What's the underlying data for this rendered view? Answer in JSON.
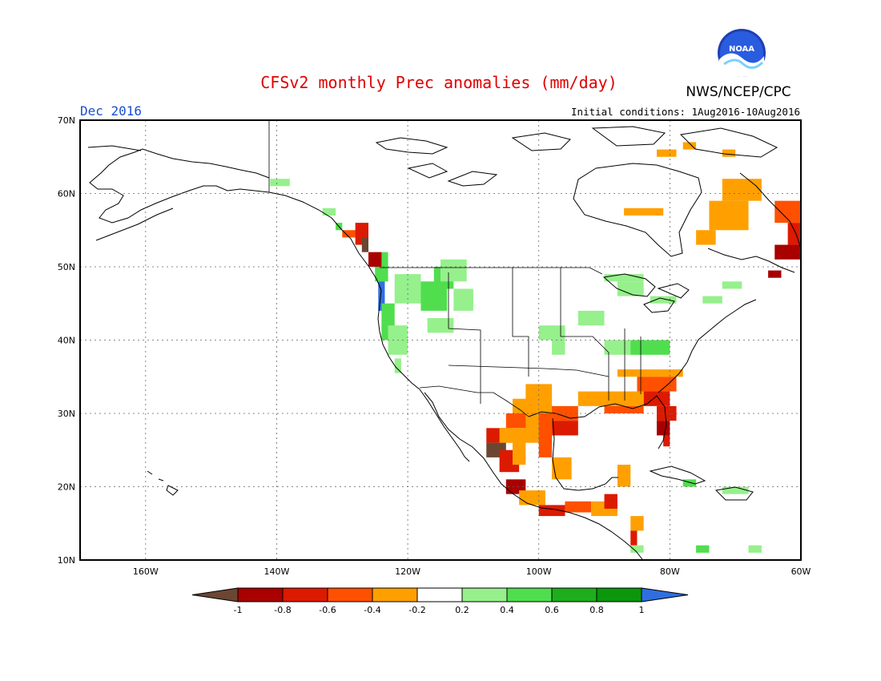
{
  "title": "CFSv2 monthly Prec anomalies (mm/day)",
  "month_label": "Dec 2016",
  "agency": "NWS/NCEP/CPC",
  "logo_text": "NOAA",
  "initial_conditions": "Initial conditions:  1Aug2016-10Aug2016",
  "axes": {
    "lat_labels": [
      "70N",
      "60N",
      "50N",
      "40N",
      "30N",
      "20N",
      "10N"
    ],
    "lon_labels": [
      "160W",
      "140W",
      "120W",
      "100W",
      "80W",
      "60W"
    ],
    "lat_range": [
      10,
      70
    ],
    "lon_range": [
      -170,
      -60
    ]
  },
  "colorbar": {
    "tick_labels": [
      "-1",
      "-0.8",
      "-0.6",
      "-0.4",
      "-0.2",
      "0.2",
      "0.4",
      "0.6",
      "0.8",
      "1"
    ],
    "colors": [
      "#6b4632",
      "#a90000",
      "#dc1a00",
      "#ff5000",
      "#ffa000",
      "#ffffff",
      "#96f08c",
      "#50de4e",
      "#1ead1c",
      "#0b960b",
      "#2e6fe0"
    ]
  },
  "anomaly_colors": {
    "strong_dry": "#6b4632",
    "dry_08": "#a90000",
    "dry_06": "#dc1a00",
    "dry_04": "#ff5000",
    "dry_02": "#ffa000",
    "wet_02": "#96f08c",
    "wet_04": "#50de4e",
    "wet_06": "#1ead1c",
    "wet_1": "#2e6fe0"
  }
}
